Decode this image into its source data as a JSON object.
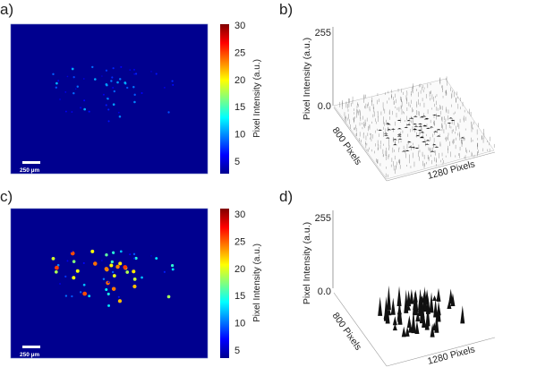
{
  "panels": {
    "a": {
      "label": "a)",
      "scale_bar": "250 µm",
      "colorbar_label": "Pixel Intensity (a.u.)",
      "colorbar_ticks": [
        "30",
        "25",
        "20",
        "15",
        "10",
        "5"
      ]
    },
    "b": {
      "label": "b)",
      "z_axis_label": "Pixel Intensity (a.u.)",
      "z_ticks": [
        "255",
        "0.0"
      ],
      "y_axis_label": "800 Pixels",
      "x_axis_label": "1280 Pixels"
    },
    "c": {
      "label": "c)",
      "scale_bar": "250 µm",
      "colorbar_label": "Pixel Intensity (a.u.)",
      "colorbar_ticks": [
        "30",
        "25",
        "20",
        "15",
        "10",
        "5"
      ]
    },
    "d": {
      "label": "d)",
      "z_axis_label": "Pixel Intensity (a.u.)",
      "z_ticks": [
        "255",
        "0.0"
      ],
      "y_axis_label": "800 Pixels",
      "x_axis_label": "1280 Pixels"
    }
  },
  "colormap": "jet",
  "colors": {
    "background": "#00008f",
    "scale_bar": "#ffffff"
  }
}
